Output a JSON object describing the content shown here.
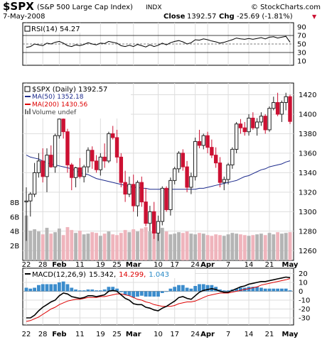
{
  "header": {
    "symbol": "$SPX",
    "name": "(S&P 500 Large Cap Index)",
    "exchange": "INDX",
    "brand": "© StockCharts.com",
    "date": "7-May-2008",
    "close_label": "Close",
    "close_value": "1392.57",
    "chg_label": "Chg",
    "chg_value": "-25.69 (-1.81%)",
    "chg_marker": "▼"
  },
  "rsi": {
    "label": "RSI(14) 54.27",
    "ticks": [
      "90",
      "70",
      "50",
      "30",
      "10"
    ],
    "tick_values": [
      90,
      70,
      50,
      30,
      10
    ],
    "ref_lines": [
      70,
      30
    ],
    "mid_line": 50
  },
  "price_legend": {
    "main": "$SPX (Daily) 1392.57",
    "ma50": "MA(50) 1352.18",
    "ma200": "MA(200) 1430.56",
    "volume": "Volume undef"
  },
  "volume_ticks": [
    "8B",
    "6B",
    "4B",
    "2B"
  ],
  "volume_tick_values": [
    8,
    6,
    4,
    2
  ],
  "macd": {
    "label_prefix": "MACD(12,26,9)",
    "v1": "15.342,",
    "v2": "14.299,",
    "v3": "1.043",
    "ticks": [
      "20",
      "10",
      "0",
      "-10",
      "-20",
      "-30"
    ],
    "tick_values": [
      20,
      10,
      0,
      -10,
      -20,
      -30
    ]
  },
  "x_labels": [
    "22",
    "28",
    "Feb",
    "11",
    "19",
    "25",
    "Mar",
    "10",
    "17",
    "24",
    "Apr",
    "7",
    "14",
    "21",
    "May"
  ],
  "x_label_index": [
    0,
    4,
    8,
    13,
    18,
    22,
    26,
    32,
    36,
    41,
    44,
    49,
    54,
    59,
    64
  ],
  "x_label_bold": [
    false,
    false,
    true,
    false,
    false,
    false,
    true,
    false,
    false,
    false,
    true,
    false,
    false,
    false,
    true
  ],
  "colors": {
    "up": "#222222",
    "down": "#cc1133",
    "vol_up": "#b4b4b4",
    "vol_down": "#efb4bc",
    "ma50": "#1c2a8c",
    "ma200": "#dd0000",
    "macd_line": "#000000",
    "signal_line": "#dd0000",
    "hist": "#3b8ccc",
    "grid": "#dddddd",
    "rsi_line": "#000000",
    "macd_v3": "#2a8ac6"
  },
  "chart_data": [
    {
      "type": "candlestick",
      "title": "$SPX (Daily) 1392.57",
      "ylim": [
        1250,
        1432
      ],
      "yticks": [
        1260,
        1280,
        1300,
        1320,
        1340,
        1360,
        1380,
        1400,
        1420
      ],
      "ohlc": [
        [
          1310,
          1325,
          1270,
          1311
        ],
        [
          1311,
          1320,
          1295,
          1318
        ],
        [
          1318,
          1350,
          1315,
          1340
        ],
        [
          1340,
          1360,
          1335,
          1352
        ],
        [
          1352,
          1365,
          1330,
          1336
        ],
        [
          1336,
          1365,
          1320,
          1358
        ],
        [
          1358,
          1368,
          1345,
          1346
        ],
        [
          1346,
          1380,
          1340,
          1378
        ],
        [
          1378,
          1396,
          1375,
          1395
        ],
        [
          1395,
          1398,
          1375,
          1382
        ],
        [
          1382,
          1385,
          1340,
          1348
        ],
        [
          1348,
          1350,
          1322,
          1335
        ],
        [
          1335,
          1346,
          1325,
          1345
        ],
        [
          1345,
          1355,
          1334,
          1336
        ],
        [
          1336,
          1348,
          1330,
          1346
        ],
        [
          1346,
          1366,
          1340,
          1363
        ],
        [
          1363,
          1367,
          1344,
          1352
        ],
        [
          1352,
          1358,
          1340,
          1343
        ],
        [
          1343,
          1360,
          1337,
          1356
        ],
        [
          1356,
          1370,
          1345,
          1352
        ],
        [
          1352,
          1382,
          1350,
          1380
        ],
        [
          1380,
          1388,
          1374,
          1376
        ],
        [
          1376,
          1384,
          1350,
          1356
        ],
        [
          1356,
          1360,
          1325,
          1330
        ],
        [
          1330,
          1342,
          1310,
          1318
        ],
        [
          1318,
          1336,
          1315,
          1328
        ],
        [
          1328,
          1338,
          1300,
          1306
        ],
        [
          1306,
          1332,
          1295,
          1330
        ],
        [
          1330,
          1336,
          1305,
          1310
        ],
        [
          1310,
          1324,
          1285,
          1288
        ],
        [
          1288,
          1306,
          1280,
          1300
        ],
        [
          1300,
          1310,
          1272,
          1278
        ],
        [
          1278,
          1296,
          1270,
          1290
        ],
        [
          1290,
          1326,
          1286,
          1324
        ],
        [
          1324,
          1326,
          1300,
          1302
        ],
        [
          1302,
          1335,
          1296,
          1332
        ],
        [
          1332,
          1346,
          1328,
          1344
        ],
        [
          1344,
          1362,
          1340,
          1360
        ],
        [
          1360,
          1364,
          1342,
          1346
        ],
        [
          1346,
          1352,
          1320,
          1325
        ],
        [
          1325,
          1340,
          1318,
          1336
        ],
        [
          1336,
          1376,
          1332,
          1372
        ],
        [
          1372,
          1384,
          1365,
          1368
        ],
        [
          1368,
          1380,
          1364,
          1378
        ],
        [
          1378,
          1382,
          1360,
          1366
        ],
        [
          1366,
          1374,
          1355,
          1358
        ],
        [
          1358,
          1366,
          1345,
          1350
        ],
        [
          1350,
          1356,
          1325,
          1330
        ],
        [
          1330,
          1336,
          1322,
          1333
        ],
        [
          1333,
          1350,
          1328,
          1348
        ],
        [
          1348,
          1366,
          1344,
          1364
        ],
        [
          1364,
          1392,
          1360,
          1390
        ],
        [
          1390,
          1395,
          1380,
          1386
        ],
        [
          1386,
          1392,
          1378,
          1382
        ],
        [
          1382,
          1400,
          1378,
          1396
        ],
        [
          1396,
          1402,
          1384,
          1386
        ],
        [
          1386,
          1396,
          1378,
          1392
        ],
        [
          1392,
          1402,
          1388,
          1398
        ],
        [
          1398,
          1400,
          1380,
          1384
        ],
        [
          1384,
          1408,
          1382,
          1406
        ],
        [
          1406,
          1418,
          1404,
          1412
        ],
        [
          1412,
          1422,
          1398,
          1400
        ],
        [
          1400,
          1414,
          1392,
          1412
        ],
        [
          1412,
          1422,
          1404,
          1418
        ],
        [
          1418,
          1420,
          1390,
          1392.57
        ]
      ],
      "ma50": [
        1358,
        1356,
        1355,
        1354,
        1352,
        1350,
        1349,
        1348,
        1347,
        1346,
        1345,
        1344,
        1342,
        1340,
        1339,
        1338,
        1336,
        1334,
        1333,
        1332,
        1331,
        1330,
        1329,
        1328,
        1327,
        1326,
        1325,
        1325,
        1324,
        1324,
        1323,
        1323,
        1323,
        1323,
        1323,
        1323,
        1323,
        1323,
        1323,
        1323,
        1323,
        1323,
        1324,
        1324,
        1325,
        1326,
        1327,
        1328,
        1329,
        1330,
        1331,
        1332,
        1334,
        1336,
        1337,
        1339,
        1341,
        1343,
        1344,
        1346,
        1347,
        1348,
        1349,
        1351,
        1352.18
      ],
      "volume": [
        6.2,
        4.1,
        4.3,
        4.0,
        3.6,
        4.5,
        3.7,
        3.9,
        4.4,
        3.5,
        4.6,
        4.2,
        3.8,
        4.1,
        3.6,
        3.7,
        3.9,
        3.8,
        3.4,
        3.7,
        4.0,
        3.6,
        3.5,
        3.8,
        4.2,
        3.9,
        4.3,
        4.0,
        4.4,
        4.6,
        4.0,
        4.3,
        3.7,
        4.5,
        4.0,
        3.6,
        3.7,
        3.9,
        3.8,
        4.0,
        3.7,
        3.6,
        3.8,
        3.7,
        3.5,
        3.4,
        3.6,
        3.5,
        3.4,
        3.6,
        3.8,
        3.7,
        3.6,
        3.5,
        3.4,
        3.5,
        3.6,
        3.7,
        3.5,
        3.8,
        3.6,
        3.9,
        3.7,
        3.8,
        3.9
      ],
      "volume_ylim": [
        0,
        10
      ]
    },
    {
      "type": "line",
      "title": "RSI(14) 54.27",
      "ylim": [
        0,
        100
      ],
      "values": [
        42,
        44,
        50,
        48,
        46,
        52,
        50,
        54,
        56,
        52,
        46,
        44,
        48,
        46,
        49,
        53,
        50,
        48,
        52,
        51,
        56,
        54,
        52,
        46,
        44,
        47,
        44,
        49,
        46,
        43,
        48,
        44,
        47,
        52,
        48,
        53,
        56,
        58,
        55,
        50,
        53,
        60,
        59,
        62,
        60,
        57,
        55,
        52,
        54,
        57,
        60,
        64,
        62,
        61,
        63,
        61,
        63,
        65,
        62,
        66,
        67,
        64,
        66,
        68,
        54.27
      ]
    },
    {
      "type": "line",
      "title": "MACD(12,26,9) 15.342, 14.299, 1.043",
      "ylim": [
        -38,
        26
      ],
      "macd": [
        -30,
        -30,
        -27,
        -22,
        -18,
        -15,
        -12,
        -10,
        -5,
        -2,
        -3,
        -6,
        -7,
        -8,
        -7,
        -5,
        -5,
        -6,
        -5,
        -4,
        0,
        1,
        0,
        -4,
        -8,
        -10,
        -14,
        -15,
        -15,
        -18,
        -19,
        -21,
        -22,
        -19,
        -17,
        -14,
        -11,
        -7,
        -6,
        -8,
        -9,
        -5,
        -1,
        1,
        2,
        3,
        2,
        0,
        -1,
        -1,
        1,
        3,
        5,
        6,
        8,
        9,
        10,
        11,
        11,
        12,
        13,
        14,
        15,
        16,
        15.342
      ],
      "signal": [
        -34,
        -33,
        -31,
        -29,
        -26,
        -23,
        -20,
        -18,
        -15,
        -13,
        -11,
        -10,
        -9,
        -9,
        -8,
        -7,
        -7,
        -7,
        -6,
        -6,
        -5,
        -4,
        -3,
        -3,
        -4,
        -5,
        -7,
        -9,
        -10,
        -12,
        -13,
        -15,
        -16,
        -17,
        -17,
        -17,
        -16,
        -14,
        -13,
        -12,
        -12,
        -11,
        -9,
        -7,
        -5,
        -4,
        -3,
        -2,
        -2,
        -2,
        -1,
        0,
        1,
        2,
        3,
        4,
        5,
        7,
        8,
        9,
        10,
        11,
        12,
        13,
        14.299
      ],
      "histogram": [
        4,
        3,
        4,
        7,
        8,
        8,
        8,
        8,
        10,
        11,
        8,
        4,
        2,
        1,
        1,
        2,
        2,
        1,
        1,
        2,
        5,
        5,
        3,
        -1,
        -4,
        -5,
        -7,
        -6,
        -5,
        -6,
        -6,
        -6,
        -6,
        -2,
        0,
        3,
        5,
        7,
        7,
        4,
        3,
        6,
        8,
        8,
        7,
        7,
        5,
        2,
        1,
        1,
        2,
        3,
        4,
        4,
        5,
        5,
        5,
        4,
        3,
        3,
        3,
        3,
        3,
        3,
        1.043
      ]
    }
  ]
}
